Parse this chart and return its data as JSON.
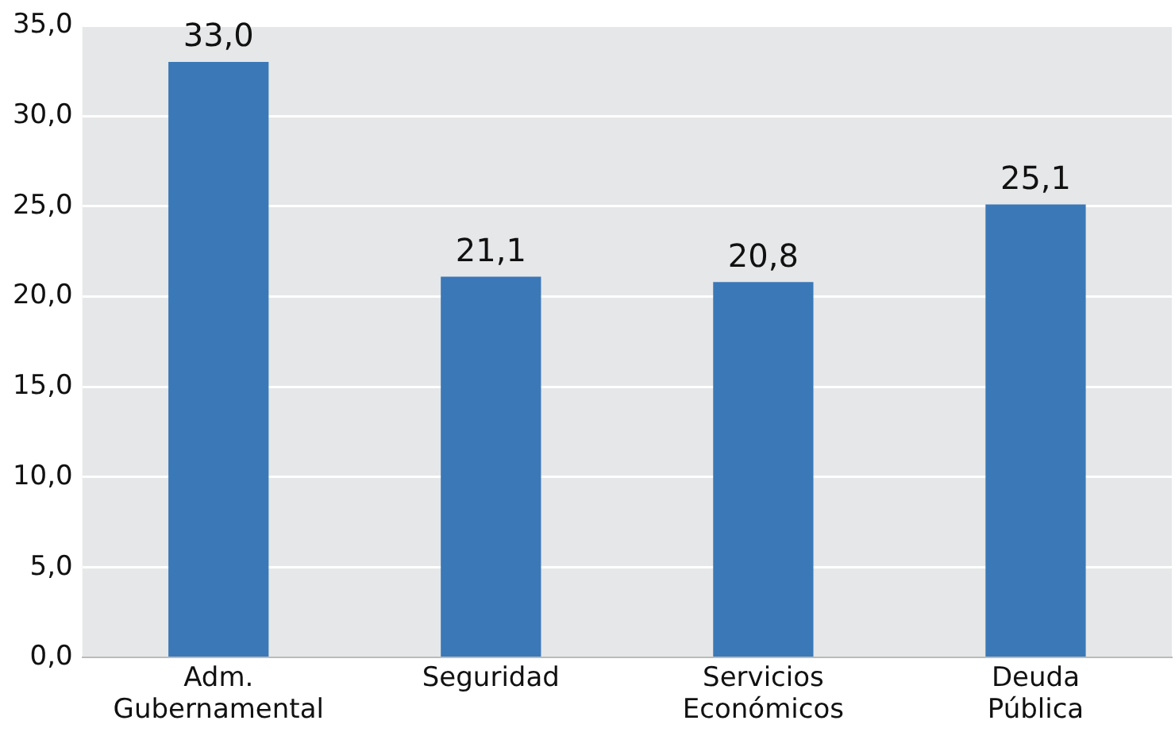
{
  "chart_data": {
    "type": "bar",
    "categories": [
      "Adm. Gubernamental",
      "Seguridad",
      "Servicios Económicos",
      "Deuda Pública"
    ],
    "values": [
      33.0,
      21.1,
      20.8,
      25.1
    ],
    "value_labels": [
      "33,0",
      "21,1",
      "20,8",
      "25,1"
    ],
    "color": "#3b78b8",
    "ylim": [
      0,
      35
    ],
    "yticks": [
      {
        "value": 0,
        "label": "0,0"
      },
      {
        "value": 5,
        "label": "5,0"
      },
      {
        "value": 10,
        "label": "10,0"
      },
      {
        "value": 15,
        "label": "15,0"
      },
      {
        "value": 20,
        "label": "20,0"
      },
      {
        "value": 25,
        "label": "25,0"
      },
      {
        "value": 30,
        "label": "30,0"
      },
      {
        "value": 35,
        "label": "35,0"
      }
    ],
    "grid": "y",
    "legend": false
  }
}
